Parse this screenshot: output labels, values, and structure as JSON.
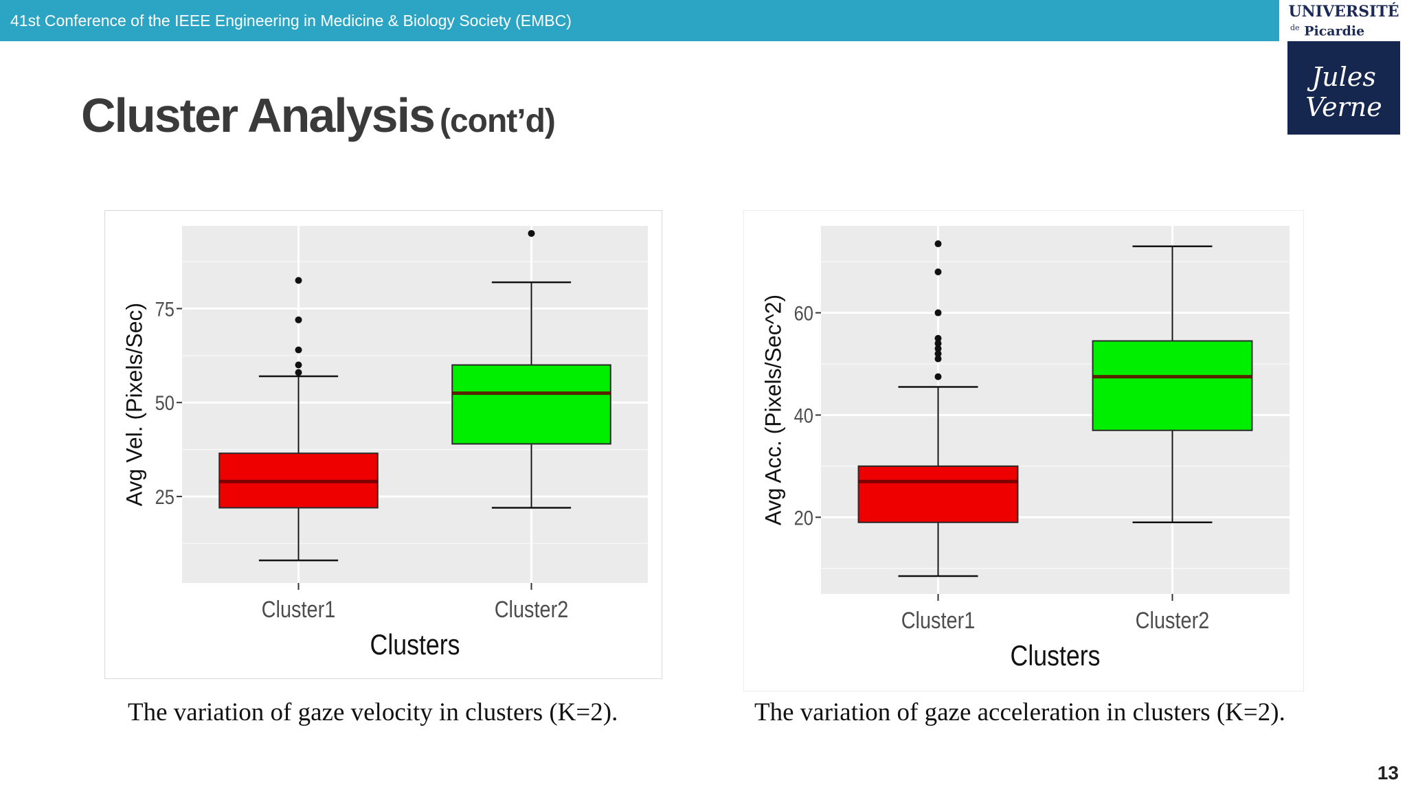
{
  "header": {
    "conference": "41st Conference of the IEEE Engineering in Medicine & Biology Society (EMBC)"
  },
  "logo": {
    "line1": "UNIVERSITÉ",
    "line2_de": "de",
    "line2": "Picardie",
    "script": "Jules Verne"
  },
  "slide": {
    "title": "Cluster Analysis",
    "title_suffix": "(cont’d)",
    "page_number": "13"
  },
  "captions": {
    "left": "The variation of gaze velocity in clusters (K=2).",
    "right": "The variation of gaze acceleration in clusters (K=2)."
  },
  "colors": {
    "header_bar": "#2ba5c3",
    "cluster1_fill": "#ee0000",
    "cluster2_fill": "#00ee00",
    "panel_bg": "#ebebeb"
  },
  "chart_data": [
    {
      "type": "boxplot",
      "xlabel": "Clusters",
      "ylabel": "Avg Vel. (Pixels/Sec)",
      "categories": [
        "Cluster1",
        "Cluster2"
      ],
      "ylim": [
        2,
        97
      ],
      "yticks": [
        25,
        50,
        75
      ],
      "ytick_labels": [
        "25",
        "50",
        "75"
      ],
      "grid": true,
      "boxes": [
        {
          "name": "Cluster1",
          "fill": "#ee0000",
          "whisker_low": 8,
          "q1": 22,
          "median": 29,
          "q3": 36.5,
          "whisker_high": 57,
          "outliers": [
            58,
            60,
            64,
            72,
            82.5
          ]
        },
        {
          "name": "Cluster2",
          "fill": "#00ee00",
          "whisker_low": 22,
          "q1": 39,
          "median": 52.5,
          "q3": 60,
          "whisker_high": 82,
          "outliers": [
            95
          ]
        }
      ]
    },
    {
      "type": "boxplot",
      "xlabel": "Clusters",
      "ylabel": "Avg Acc. (Pixels/Sec^2)",
      "categories": [
        "Cluster1",
        "Cluster2"
      ],
      "ylim": [
        5,
        77
      ],
      "yticks": [
        20,
        40,
        60
      ],
      "ytick_labels": [
        "20",
        "40",
        "60"
      ],
      "grid": true,
      "boxes": [
        {
          "name": "Cluster1",
          "fill": "#ee0000",
          "whisker_low": 8.5,
          "q1": 19,
          "median": 27,
          "q3": 30,
          "whisker_high": 45.5,
          "outliers": [
            47.5,
            51,
            52,
            53,
            54,
            55,
            60,
            68,
            73.5
          ]
        },
        {
          "name": "Cluster2",
          "fill": "#00ee00",
          "whisker_low": 19,
          "q1": 37,
          "median": 47.5,
          "q3": 54.5,
          "whisker_high": 73,
          "outliers": []
        }
      ]
    }
  ]
}
